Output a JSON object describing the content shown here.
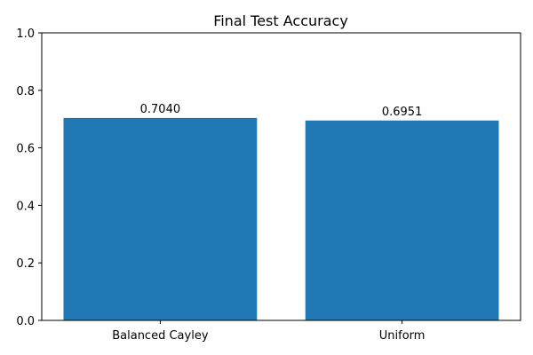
{
  "chart_data": {
    "type": "bar",
    "title": "Final Test Accuracy",
    "xlabel": "",
    "ylabel": "",
    "categories": [
      "Balanced Cayley",
      "Uniform"
    ],
    "values": [
      0.704,
      0.6951
    ],
    "value_labels": [
      "0.7040",
      "0.6951"
    ],
    "ylim": [
      0,
      1.0
    ],
    "yticks": [
      0.0,
      0.2,
      0.4,
      0.6,
      0.8,
      1.0
    ],
    "ytick_labels": [
      "0.0",
      "0.2",
      "0.4",
      "0.6",
      "0.8",
      "1.0"
    ],
    "grid": false,
    "legend": "none",
    "bar_color": "#1f77b4"
  }
}
